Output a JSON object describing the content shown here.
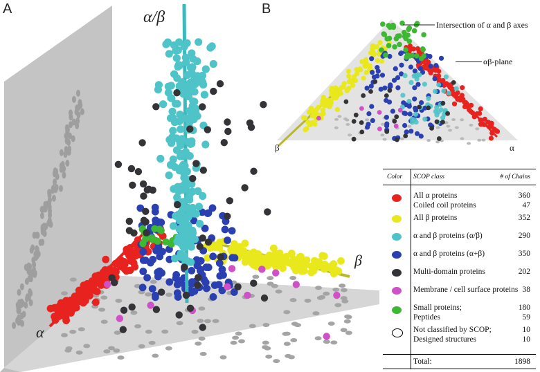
{
  "panels": {
    "a": "A",
    "b": "B"
  },
  "axes": {
    "alpha": "α",
    "beta": "β",
    "alphabeta": "α/β"
  },
  "annotations": {
    "intersection": "Intersection of α and β axes",
    "plane": "αβ-plane"
  },
  "colors": {
    "alpha": "#e8231f",
    "beta": "#e8e81c",
    "ab_slash": "#4ec3c8",
    "ab_plus": "#2a3fb0",
    "multi": "#333338",
    "membrane": "#d050c8",
    "small": "#3cb832"
  },
  "legend": {
    "headers": {
      "color": "Color",
      "class": "SCOP class",
      "count": "# of Chains"
    },
    "rows": [
      {
        "color": "#e8231f",
        "labels": [
          "All α proteins",
          "Coiled coil proteins"
        ],
        "counts": [
          "360",
          "47"
        ]
      },
      {
        "color": "#e8e81c",
        "labels": [
          "All β proteins"
        ],
        "counts": [
          "352"
        ]
      },
      {
        "color": "#4ec3c8",
        "labels": [
          "α and β proteins (α/β)"
        ],
        "counts": [
          "290"
        ]
      },
      {
        "color": "#2a3fb0",
        "labels": [
          "α and β proteins (α+β)"
        ],
        "counts": [
          "350"
        ]
      },
      {
        "color": "#333338",
        "labels": [
          "Multi-domain proteins"
        ],
        "counts": [
          "202"
        ]
      },
      {
        "color": "#d050c8",
        "labels": [
          "Membrane / cell surface proteins"
        ],
        "counts": [
          "38"
        ]
      },
      {
        "color": "#3cb832",
        "labels": [
          "Small proteins;",
          "Peptides"
        ],
        "counts": [
          "180",
          "59"
        ]
      },
      {
        "color": "#ffffff",
        "labels": [
          "Not classified by SCOP;",
          "Designed structures"
        ],
        "counts": [
          "10",
          "10"
        ]
      }
    ],
    "total_label": "Total:",
    "total_value": "1898"
  },
  "chart_data": {
    "type": "scatter",
    "title": "",
    "series": [
      {
        "name": "All α proteins",
        "count": 360
      },
      {
        "name": "Coiled coil proteins",
        "count": 47
      },
      {
        "name": "All β proteins",
        "count": 352
      },
      {
        "name": "α and β proteins (α/β)",
        "count": 290
      },
      {
        "name": "α and β proteins (α+β)",
        "count": 350
      },
      {
        "name": "Multi-domain proteins",
        "count": 202
      },
      {
        "name": "Membrane / cell surface proteins",
        "count": 38
      },
      {
        "name": "Small proteins",
        "count": 180
      },
      {
        "name": "Peptides",
        "count": 59
      },
      {
        "name": "Not classified by SCOP",
        "count": 10
      },
      {
        "name": "Designed structures",
        "count": 10
      }
    ],
    "axes": [
      "α",
      "β",
      "α/β"
    ],
    "grid": false,
    "legend_position": "bottom-right"
  }
}
